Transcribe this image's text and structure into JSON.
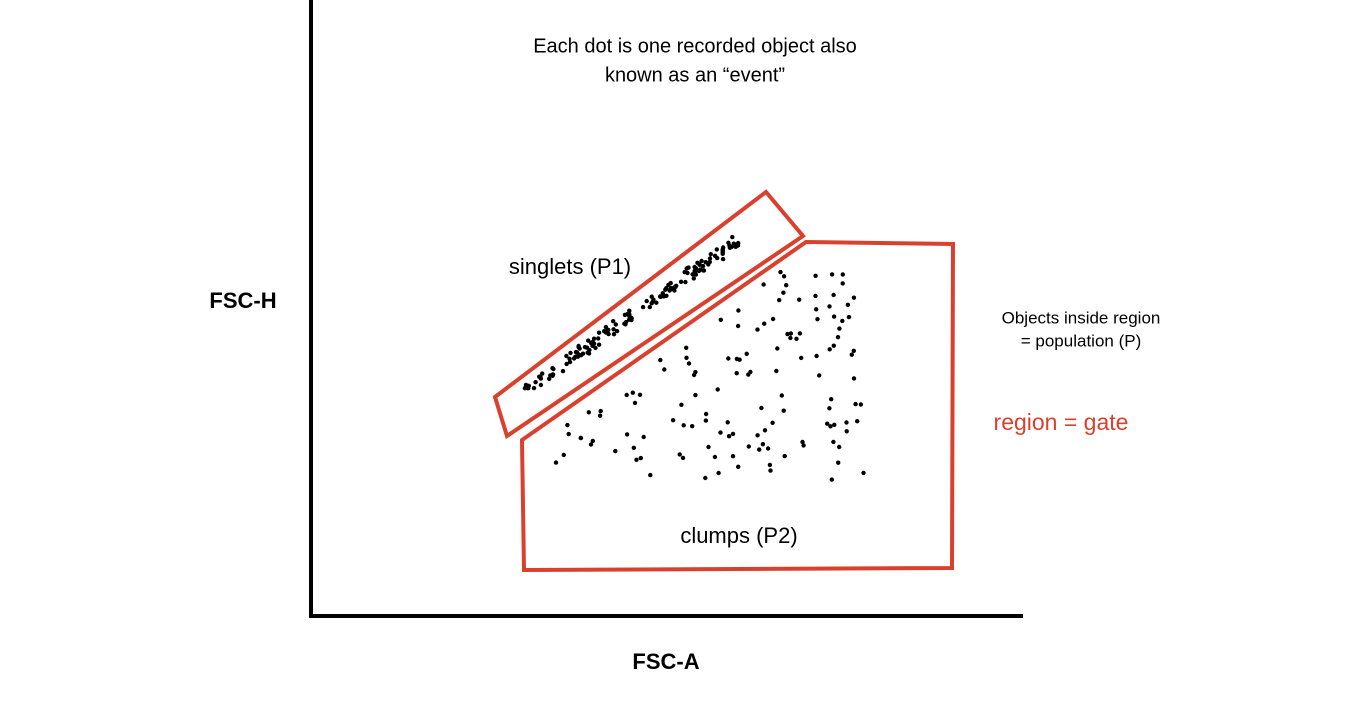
{
  "annotation": {
    "lines": [
      "Each dot is one recorded object also",
      "known as an “event”"
    ]
  },
  "axes": {
    "y_label": "FSC-H",
    "x_label": "FSC-A"
  },
  "gates": [
    {
      "label": "singlets (P1)"
    },
    {
      "label": "clumps (P2)"
    }
  ],
  "legend": {
    "lines": [
      "Objects inside region",
      "= population (P)"
    ],
    "gate_note": "region = gate"
  }
}
